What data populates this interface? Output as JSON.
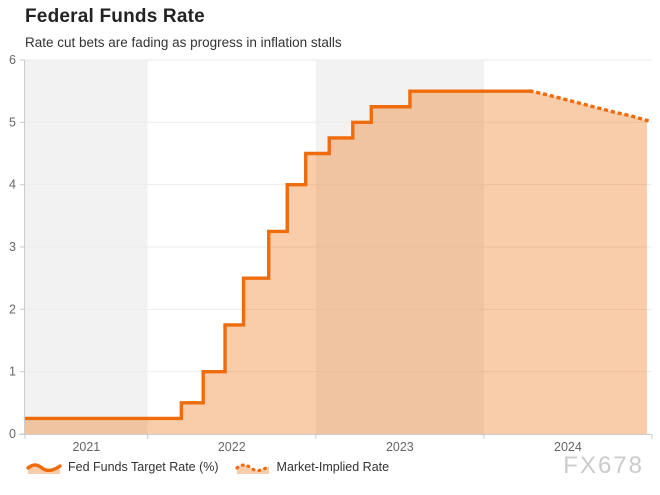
{
  "header": {
    "title": "Federal Funds Rate",
    "subtitle": "Rate cut bets are fading as progress in inflation stalls"
  },
  "watermark": "FX678",
  "legend": {
    "items": [
      {
        "label": "Fed Funds Target Rate (%)",
        "icon": "area-series-icon",
        "line_style": "solid"
      },
      {
        "label": "Market-Implied Rate",
        "icon": "dotted-series-icon",
        "line_style": "dotted"
      }
    ]
  },
  "colors": {
    "line": "#ef6c0c",
    "area_fill": "rgba(239,108,12,0.35)",
    "plot_band": "#f2f2f2",
    "axis_line": "#cccccc",
    "grid_line": "#ebebeb",
    "tick_label": "#666666",
    "title": "#222222",
    "subtitle": "#333333",
    "watermark": "#cbcbcb"
  },
  "chart_data": {
    "type": "area",
    "step": true,
    "title": "Federal Funds Rate",
    "subtitle": "Rate cut bets are fading as progress in inflation stalls",
    "xlabel": "",
    "ylabel": "",
    "ylim": [
      0,
      6
    ],
    "yticks": [
      0,
      1,
      2,
      3,
      4,
      5,
      6
    ],
    "xlim": [
      2021.27,
      2025.0
    ],
    "xtick_year_labels": [
      "2021",
      "2022",
      "2023",
      "2024"
    ],
    "xtick_years": [
      2021,
      2022,
      2023,
      2024
    ],
    "plot_band_gray_years": [
      2021,
      2023
    ],
    "grid": true,
    "legend_position": "bottom-left",
    "series": [
      {
        "name": "Fed Funds Target Rate (%)",
        "style": "solid-step",
        "points": [
          {
            "x": 2021.27,
            "y": 0.25
          },
          {
            "x": 2022.2,
            "y": 0.5
          },
          {
            "x": 2022.33,
            "y": 1.0
          },
          {
            "x": 2022.46,
            "y": 1.75
          },
          {
            "x": 2022.57,
            "y": 2.5
          },
          {
            "x": 2022.72,
            "y": 3.25
          },
          {
            "x": 2022.83,
            "y": 4.0
          },
          {
            "x": 2022.94,
            "y": 4.5
          },
          {
            "x": 2023.08,
            "y": 4.75
          },
          {
            "x": 2023.22,
            "y": 5.0
          },
          {
            "x": 2023.33,
            "y": 5.25
          },
          {
            "x": 2023.56,
            "y": 5.5
          },
          {
            "x": 2024.28,
            "y": 5.5
          }
        ]
      },
      {
        "name": "Market-Implied Rate",
        "style": "dotted-line",
        "points": [
          {
            "x": 2024.28,
            "y": 5.5
          },
          {
            "x": 2024.38,
            "y": 5.44
          },
          {
            "x": 2024.48,
            "y": 5.37
          },
          {
            "x": 2024.58,
            "y": 5.3
          },
          {
            "x": 2024.68,
            "y": 5.23
          },
          {
            "x": 2024.78,
            "y": 5.16
          },
          {
            "x": 2024.88,
            "y": 5.1
          },
          {
            "x": 2024.97,
            "y": 5.03
          }
        ]
      }
    ]
  }
}
